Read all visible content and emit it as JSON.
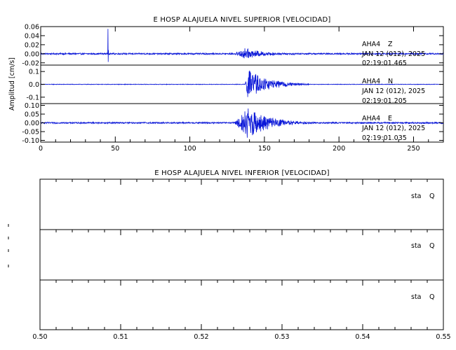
{
  "chart_data": [
    {
      "type": "line",
      "title": "E HOSP ALAJUELA NIVEL SUPERIOR [VELOCIDAD]",
      "ylabel": "Amplitud [cm/s]",
      "xlim": [
        0,
        270
      ],
      "x_ticks": [
        "0",
        "50",
        "100",
        "150",
        "200",
        "250"
      ],
      "series_color": "#0a17d8",
      "series": [
        {
          "station": "AHA4",
          "component": "Z",
          "date": "JAN 12 (012), 2025",
          "time": "02:19:01.465",
          "ylim": [
            -0.025,
            0.06
          ],
          "y_ticks": [
            "0.06",
            "0.04",
            "0.02",
            "0.00",
            "-0.02"
          ],
          "noise_amplitude": 0.0015,
          "spike": {
            "x": 45,
            "peak": 0.055,
            "trough": -0.018
          },
          "coda": {
            "onset": 130,
            "peak_x": 137,
            "peak_amplitude": 0.012,
            "end": 175
          }
        },
        {
          "station": "AHA4",
          "component": "N",
          "date": "JAN 12 (012), 2025",
          "time": "02:19:01.205",
          "ylim": [
            -0.15,
            0.15
          ],
          "y_ticks": [
            "0.1",
            "0.0",
            "-0.1"
          ],
          "noise_amplitude": 0.002,
          "coda": {
            "onset": 137,
            "peak_x": 139,
            "peak_amplitude": 0.12,
            "end": 180
          }
        },
        {
          "station": "AHA4",
          "component": "E",
          "date": "JAN 12 (012), 2025",
          "time": "02:19:01.035",
          "ylim": [
            -0.11,
            0.11
          ],
          "y_ticks": [
            "0.10",
            "0.05",
            "0.00",
            "-0.05",
            "-0.10"
          ],
          "noise_amplitude": 0.004,
          "coda": {
            "onset": 130,
            "peak_x": 139,
            "peak_amplitude": 0.09,
            "end": 182
          }
        }
      ]
    },
    {
      "type": "line",
      "title": "E HOSP ALAJUELA NIVEL INFERIOR [VELOCIDAD]",
      "xlim": [
        0.5,
        0.55
      ],
      "x_ticks": [
        "0.50",
        "0.51",
        "0.52",
        "0.53",
        "0.54",
        "0.55"
      ],
      "panels": [
        {
          "label": "sta",
          "component": "Q"
        },
        {
          "label": "sta",
          "component": "Q"
        },
        {
          "label": "sta",
          "component": "Q"
        }
      ]
    }
  ]
}
